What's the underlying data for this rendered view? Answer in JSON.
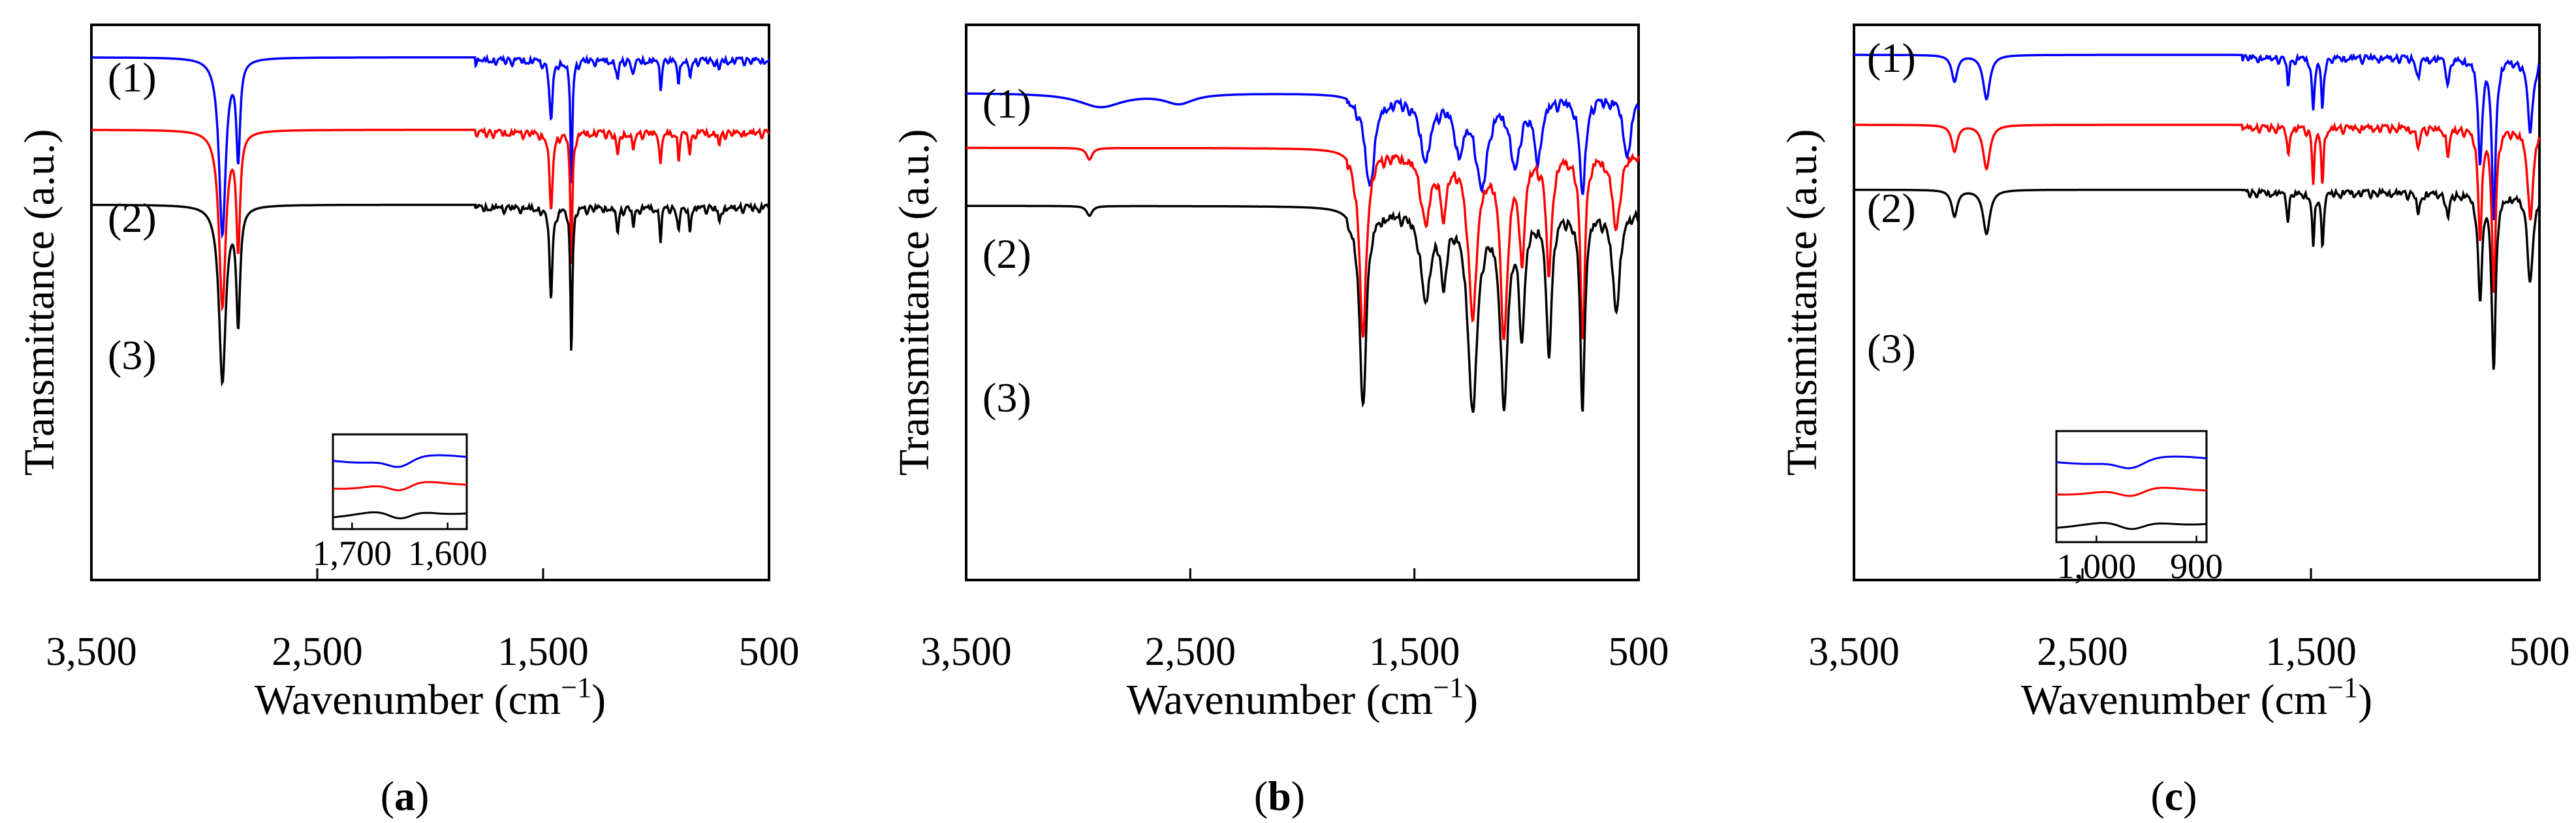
{
  "chart_data": [
    {
      "type": "line",
      "panel": "(a)",
      "panel_letter": "a",
      "xlabel": "Wavenumber (cm",
      "xlabel_sup": "−1",
      "xlabel_close": ")",
      "ylabel": "Transmittance (a.u.)",
      "xlim": [
        3500,
        500
      ],
      "xticks": [
        "3,500",
        "2,500",
        "1,500",
        "500"
      ],
      "xtick_values": [
        3500,
        2500,
        1500,
        500
      ],
      "series": [
        {
          "name": "(1)",
          "color": "#0000ff",
          "baseline": 0.13,
          "bands": [
            [
              2920,
              1.0,
              18
            ],
            [
              2850,
              0.55,
              10
            ],
            [
              1465,
              0.35,
              8
            ],
            [
              1375,
              0.72,
              5
            ],
            [
              1170,
              0.12,
              6
            ],
            [
              1100,
              0.08,
              6
            ],
            [
              980,
              0.15,
              5
            ],
            [
              900,
              0.12,
              5
            ],
            [
              850,
              0.1,
              5
            ],
            [
              720,
              0.06,
              6
            ]
          ]
        },
        {
          "name": "(2)",
          "color": "#ff0000",
          "baseline": 0.42,
          "bands": [
            [
              2920,
              1.0,
              18
            ],
            [
              2850,
              0.65,
              10
            ],
            [
              1465,
              0.45,
              8
            ],
            [
              1375,
              0.78,
              5
            ],
            [
              1170,
              0.14,
              6
            ],
            [
              1100,
              0.1,
              6
            ],
            [
              980,
              0.18,
              5
            ],
            [
              900,
              0.14,
              5
            ],
            [
              850,
              0.12,
              5
            ],
            [
              720,
              0.08,
              6
            ]
          ]
        },
        {
          "name": "(3)",
          "color": "#000000",
          "baseline": 0.72,
          "bands": [
            [
              2920,
              1.0,
              18
            ],
            [
              2850,
              0.65,
              10
            ],
            [
              1465,
              0.5,
              8
            ],
            [
              1375,
              0.82,
              5
            ],
            [
              1170,
              0.14,
              6
            ],
            [
              1100,
              0.1,
              6
            ],
            [
              980,
              0.18,
              5
            ],
            [
              900,
              0.14,
              5
            ],
            [
              850,
              0.12,
              5
            ],
            [
              720,
              0.08,
              6
            ]
          ]
        }
      ],
      "inset": {
        "xticks": [
          "1,700",
          "1,600"
        ],
        "xtick_values": [
          1700,
          1600
        ],
        "xlim": [
          1720,
          1580
        ]
      }
    },
    {
      "type": "line",
      "panel": "(b)",
      "panel_letter": "b",
      "xlabel": "Wavenumber (cm",
      "xlabel_sup": "−1",
      "xlabel_close": ")",
      "ylabel": "Transmittance (a.u.)",
      "xlim": [
        3500,
        500
      ],
      "xticks": [
        "3,500",
        "2,500",
        "1,500",
        "500"
      ],
      "xtick_values": [
        3500,
        2500,
        1500,
        500
      ],
      "series": [
        {
          "name": "(1)",
          "color": "#0000ff",
          "baseline": 0.18,
          "bands": [
            [
              2900,
              0.07,
              120
            ],
            [
              2550,
              0.05,
              80
            ],
            [
              1700,
              0.45,
              25
            ],
            [
              1450,
              0.3,
              30
            ],
            [
              1300,
              0.25,
              25
            ],
            [
              1200,
              0.45,
              30
            ],
            [
              1050,
              0.35,
              25
            ],
            [
              950,
              0.3,
              20
            ],
            [
              750,
              0.5,
              15
            ],
            [
              550,
              0.3,
              20
            ]
          ]
        },
        {
          "name": "(2)",
          "color": "#ff0000",
          "baseline": 0.36,
          "bands": [
            [
              2950,
              0.06,
              15
            ],
            [
              1730,
              0.95,
              18
            ],
            [
              1450,
              0.35,
              25
            ],
            [
              1370,
              0.3,
              15
            ],
            [
              1240,
              0.8,
              25
            ],
            [
              1100,
              0.9,
              20
            ],
            [
              1020,
              0.5,
              15
            ],
            [
              900,
              0.6,
              15
            ],
            [
              750,
              0.95,
              12
            ],
            [
              600,
              0.4,
              20
            ]
          ]
        },
        {
          "name": "(3)",
          "color": "#000000",
          "baseline": 0.55,
          "bands": [
            [
              2950,
              0.05,
              15
            ],
            [
              1730,
              1.0,
              18
            ],
            [
              1450,
              0.45,
              25
            ],
            [
              1370,
              0.35,
              15
            ],
            [
              1240,
              1.0,
              25
            ],
            [
              1100,
              0.95,
              20
            ],
            [
              1020,
              0.6,
              15
            ],
            [
              900,
              0.7,
              15
            ],
            [
              750,
              1.0,
              12
            ],
            [
              600,
              0.5,
              20
            ]
          ]
        }
      ]
    },
    {
      "type": "line",
      "panel": "(c)",
      "panel_letter": "c",
      "xlabel": "Wavenumber (cm",
      "xlabel_sup": "−1",
      "xlabel_close": ")",
      "ylabel": "Transmittance (a.u.)",
      "xlim": [
        3500,
        500
      ],
      "xticks": [
        "3,500",
        "2,500",
        "1,500",
        "500"
      ],
      "xtick_values": [
        3500,
        2500,
        1500,
        500
      ],
      "series": [
        {
          "name": "(1)",
          "color": "#0000ff",
          "baseline": 0.12,
          "bands": [
            [
              3060,
              0.15,
              15
            ],
            [
              2920,
              0.25,
              18
            ],
            [
              1600,
              0.15,
              6
            ],
            [
              1490,
              0.3,
              6
            ],
            [
              1450,
              0.3,
              6
            ],
            [
              1030,
              0.12,
              8
            ],
            [
              900,
              0.15,
              8
            ],
            [
              760,
              0.6,
              10
            ],
            [
              700,
              0.9,
              10
            ],
            [
              540,
              0.4,
              15
            ]
          ]
        },
        {
          "name": "(2)",
          "color": "#ff0000",
          "baseline": 0.4,
          "bands": [
            [
              3060,
              0.15,
              15
            ],
            [
              2920,
              0.25,
              18
            ],
            [
              1600,
              0.15,
              6
            ],
            [
              1490,
              0.3,
              6
            ],
            [
              1450,
              0.3,
              6
            ],
            [
              1030,
              0.12,
              8
            ],
            [
              900,
              0.15,
              8
            ],
            [
              760,
              0.6,
              10
            ],
            [
              700,
              0.9,
              10
            ],
            [
              540,
              0.5,
              15
            ]
          ]
        },
        {
          "name": "(3)",
          "color": "#000000",
          "baseline": 0.66,
          "bands": [
            [
              3060,
              0.15,
              15
            ],
            [
              2920,
              0.25,
              18
            ],
            [
              1600,
              0.15,
              6
            ],
            [
              1490,
              0.3,
              6
            ],
            [
              1450,
              0.3,
              6
            ],
            [
              1030,
              0.12,
              8
            ],
            [
              900,
              0.15,
              8
            ],
            [
              760,
              0.6,
              10
            ],
            [
              700,
              1.0,
              10
            ],
            [
              540,
              0.5,
              15
            ]
          ]
        }
      ],
      "inset": {
        "xticks": [
          "1,000",
          "900"
        ],
        "xtick_values": [
          1000,
          900
        ],
        "xlim": [
          1040,
          890
        ]
      }
    }
  ]
}
